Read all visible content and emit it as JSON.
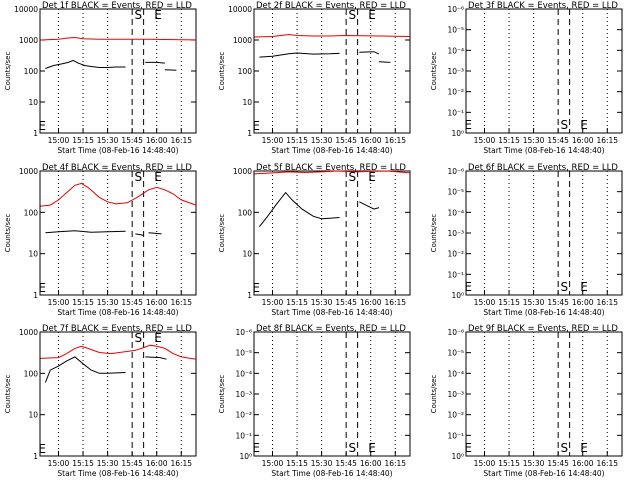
{
  "colors": {
    "events": "#000000",
    "lld": "#ee0000",
    "axis": "#000000"
  },
  "common": {
    "xlabel": "Start Time (08-Feb-16 14:48:40)",
    "ylabel": "Counts/sec",
    "x_ticks": [
      "15:00",
      "15:15",
      "15:30",
      "15:45",
      "16:00",
      "16:15"
    ],
    "x_tick_minutes": [
      0,
      15,
      30,
      45,
      60,
      75
    ],
    "x_range_minutes": [
      -11.3,
      84
    ],
    "x_origin": "15:00",
    "dotted_lines_minutes": [
      0,
      15,
      30,
      60,
      75
    ],
    "dashed_lines_minutes": [
      45,
      52
    ],
    "markers": [
      {
        "label": "S",
        "minute": 50
      },
      {
        "label": "E",
        "minute": 62
      },
      {
        "label": "E",
        "minute": -10
      }
    ]
  },
  "chart_data": [
    {
      "type": "line",
      "title": "Det 1f BLACK = Events, RED = LLD",
      "ylim": [
        1,
        10000
      ],
      "yscale": "log",
      "y_ticks": [
        "1",
        "10",
        "100",
        "1000",
        "10000"
      ],
      "series": [
        {
          "color": "#ee0000",
          "segments": [
            [
              [
                -11,
                1000
              ],
              [
                0,
                1050
              ],
              [
                5,
                1150
              ],
              [
                10,
                1200
              ],
              [
                15,
                1100
              ],
              [
                25,
                1050
              ],
              [
                35,
                1050
              ],
              [
                45,
                1060
              ],
              [
                55,
                1050
              ],
              [
                65,
                1040
              ],
              [
                75,
                1020
              ],
              [
                84,
                1010
              ]
            ]
          ]
        },
        {
          "color": "#000000",
          "segments": [
            [
              [
                -8,
                120
              ],
              [
                -3,
                150
              ],
              [
                2,
                170
              ],
              [
                6,
                190
              ],
              [
                9,
                220
              ],
              [
                12,
                180
              ],
              [
                16,
                150
              ],
              [
                20,
                140
              ],
              [
                25,
                130
              ],
              [
                30,
                130
              ],
              [
                35,
                135
              ],
              [
                41,
                135
              ]
            ],
            [
              [
                53,
                190
              ],
              [
                60,
                190
              ],
              [
                65,
                180
              ]
            ],
            [
              [
                65,
                110
              ],
              [
                72,
                105
              ]
            ]
          ]
        }
      ]
    },
    {
      "type": "line",
      "title": "Det 2f BLACK = Events, RED = LLD",
      "ylim": [
        1,
        10000
      ],
      "yscale": "log",
      "y_ticks": [
        "1",
        "10",
        "100",
        "1000",
        "10000"
      ],
      "series": [
        {
          "color": "#ee0000",
          "segments": [
            [
              [
                -11,
                1250
              ],
              [
                0,
                1300
              ],
              [
                10,
                1500
              ],
              [
                15,
                1400
              ],
              [
                25,
                1350
              ],
              [
                35,
                1350
              ],
              [
                45,
                1400
              ],
              [
                55,
                1380
              ],
              [
                65,
                1350
              ],
              [
                75,
                1320
              ],
              [
                84,
                1300
              ]
            ]
          ]
        },
        {
          "color": "#000000",
          "segments": [
            [
              [
                -8,
                280
              ],
              [
                0,
                300
              ],
              [
                10,
                360
              ],
              [
                15,
                380
              ],
              [
                25,
                350
              ],
              [
                35,
                360
              ],
              [
                41,
                370
              ]
            ],
            [
              [
                53,
                400
              ],
              [
                62,
                420
              ],
              [
                65,
                350
              ]
            ],
            [
              [
                65,
                200
              ],
              [
                72,
                190
              ]
            ]
          ]
        }
      ]
    },
    {
      "type": "line",
      "title": "Det 3f BLACK = Events, RED = LLD",
      "ylim": [
        1,
        1e-06
      ],
      "yscale": "log",
      "y_ticks": [
        "10⁰",
        "10⁻¹",
        "10⁻²",
        "10⁻³",
        "10⁻⁴",
        "10⁻⁵",
        "10⁻⁶"
      ],
      "series": []
    },
    {
      "type": "line",
      "title": "Det 4f BLACK = Events, RED = LLD",
      "ylim": [
        1,
        1000
      ],
      "yscale": "log",
      "y_ticks": [
        "1",
        "10",
        "100",
        "1000"
      ],
      "series": [
        {
          "color": "#ee0000",
          "segments": [
            [
              [
                -11,
                140
              ],
              [
                -5,
                150
              ],
              [
                0,
                200
              ],
              [
                5,
                300
              ],
              [
                10,
                450
              ],
              [
                14,
                500
              ],
              [
                18,
                400
              ],
              [
                25,
                230
              ],
              [
                30,
                180
              ],
              [
                35,
                160
              ],
              [
                42,
                170
              ],
              [
                48,
                230
              ],
              [
                55,
                350
              ],
              [
                60,
                400
              ],
              [
                65,
                350
              ],
              [
                70,
                280
              ],
              [
                75,
                200
              ],
              [
                84,
                150
              ]
            ]
          ]
        },
        {
          "color": "#000000",
          "segments": [
            [
              [
                -8,
                32
              ],
              [
                0,
                34
              ],
              [
                10,
                36
              ],
              [
                20,
                33
              ],
              [
                30,
                34
              ],
              [
                41,
                35
              ]
            ],
            [
              [
                47,
                30
              ],
              [
                52,
                28
              ]
            ],
            [
              [
                55,
                32
              ],
              [
                63,
                30
              ]
            ]
          ]
        }
      ]
    },
    {
      "type": "line",
      "title": "Det 5f BLACK = Events, RED = LLD",
      "ylim": [
        1,
        1000
      ],
      "yscale": "log",
      "y_ticks": [
        "1",
        "10",
        "100",
        "1000"
      ],
      "series": [
        {
          "color": "#ee0000",
          "segments": [
            [
              [
                -11,
                850
              ],
              [
                0,
                900
              ],
              [
                10,
                950
              ],
              [
                20,
                920
              ],
              [
                30,
                950
              ],
              [
                40,
                1000
              ],
              [
                50,
                950
              ],
              [
                60,
                980
              ],
              [
                70,
                1000
              ],
              [
                84,
                900
              ]
            ]
          ]
        },
        {
          "color": "#000000",
          "segments": [
            [
              [
                -8,
                45
              ],
              [
                -3,
                80
              ],
              [
                2,
                150
              ],
              [
                8,
                300
              ],
              [
                12,
                200
              ],
              [
                18,
                120
              ],
              [
                25,
                80
              ],
              [
                30,
                70
              ],
              [
                35,
                72
              ],
              [
                41,
                75
              ]
            ],
            [
              [
                53,
                180
              ],
              [
                57,
                150
              ],
              [
                62,
                120
              ],
              [
                65,
                130
              ]
            ]
          ]
        }
      ]
    },
    {
      "type": "line",
      "title": "Det 6f BLACK = Events, RED = LLD",
      "ylim": [
        1,
        1e-06
      ],
      "yscale": "log",
      "y_ticks": [
        "10⁰",
        "10⁻¹",
        "10⁻²",
        "10⁻³",
        "10⁻⁴",
        "10⁻⁵",
        "10⁻⁶"
      ],
      "series": []
    },
    {
      "type": "line",
      "title": "Det 7f BLACK = Events, RED = LLD",
      "ylim": [
        1,
        1000
      ],
      "yscale": "log",
      "y_ticks": [
        "1",
        "10",
        "100",
        "1000"
      ],
      "series": [
        {
          "color": "#ee0000",
          "segments": [
            [
              [
                -11,
                230
              ],
              [
                0,
                240
              ],
              [
                5,
                300
              ],
              [
                10,
                400
              ],
              [
                14,
                450
              ],
              [
                18,
                400
              ],
              [
                25,
                320
              ],
              [
                32,
                300
              ],
              [
                40,
                330
              ],
              [
                47,
                360
              ],
              [
                52,
                420
              ],
              [
                56,
                480
              ],
              [
                60,
                450
              ],
              [
                65,
                400
              ],
              [
                70,
                300
              ],
              [
                75,
                250
              ],
              [
                84,
                220
              ]
            ]
          ]
        },
        {
          "color": "#000000",
          "segments": [
            [
              [
                -8,
                60
              ],
              [
                -5,
                120
              ],
              [
                0,
                150
              ],
              [
                5,
                200
              ],
              [
                10,
                250
              ],
              [
                15,
                170
              ],
              [
                20,
                120
              ],
              [
                25,
                100
              ],
              [
                30,
                100
              ],
              [
                41,
                105
              ]
            ],
            [
              [
                53,
                250
              ],
              [
                62,
                240
              ],
              [
                66,
                220
              ]
            ]
          ]
        }
      ]
    },
    {
      "type": "line",
      "title": "Det 8f BLACK = Events, RED = LLD",
      "ylim": [
        1,
        1e-06
      ],
      "yscale": "log",
      "y_ticks": [
        "10⁰",
        "10⁻¹",
        "10⁻²",
        "10⁻³",
        "10⁻⁴",
        "10⁻⁵",
        "10⁻⁶"
      ],
      "series": []
    },
    {
      "type": "line",
      "title": "Det 9f BLACK = Events, RED = LLD",
      "ylim": [
        1,
        1e-06
      ],
      "yscale": "log",
      "y_ticks": [
        "10⁰",
        "10⁻¹",
        "10⁻²",
        "10⁻³",
        "10⁻⁴",
        "10⁻⁵",
        "10⁻⁶"
      ],
      "series": []
    }
  ]
}
